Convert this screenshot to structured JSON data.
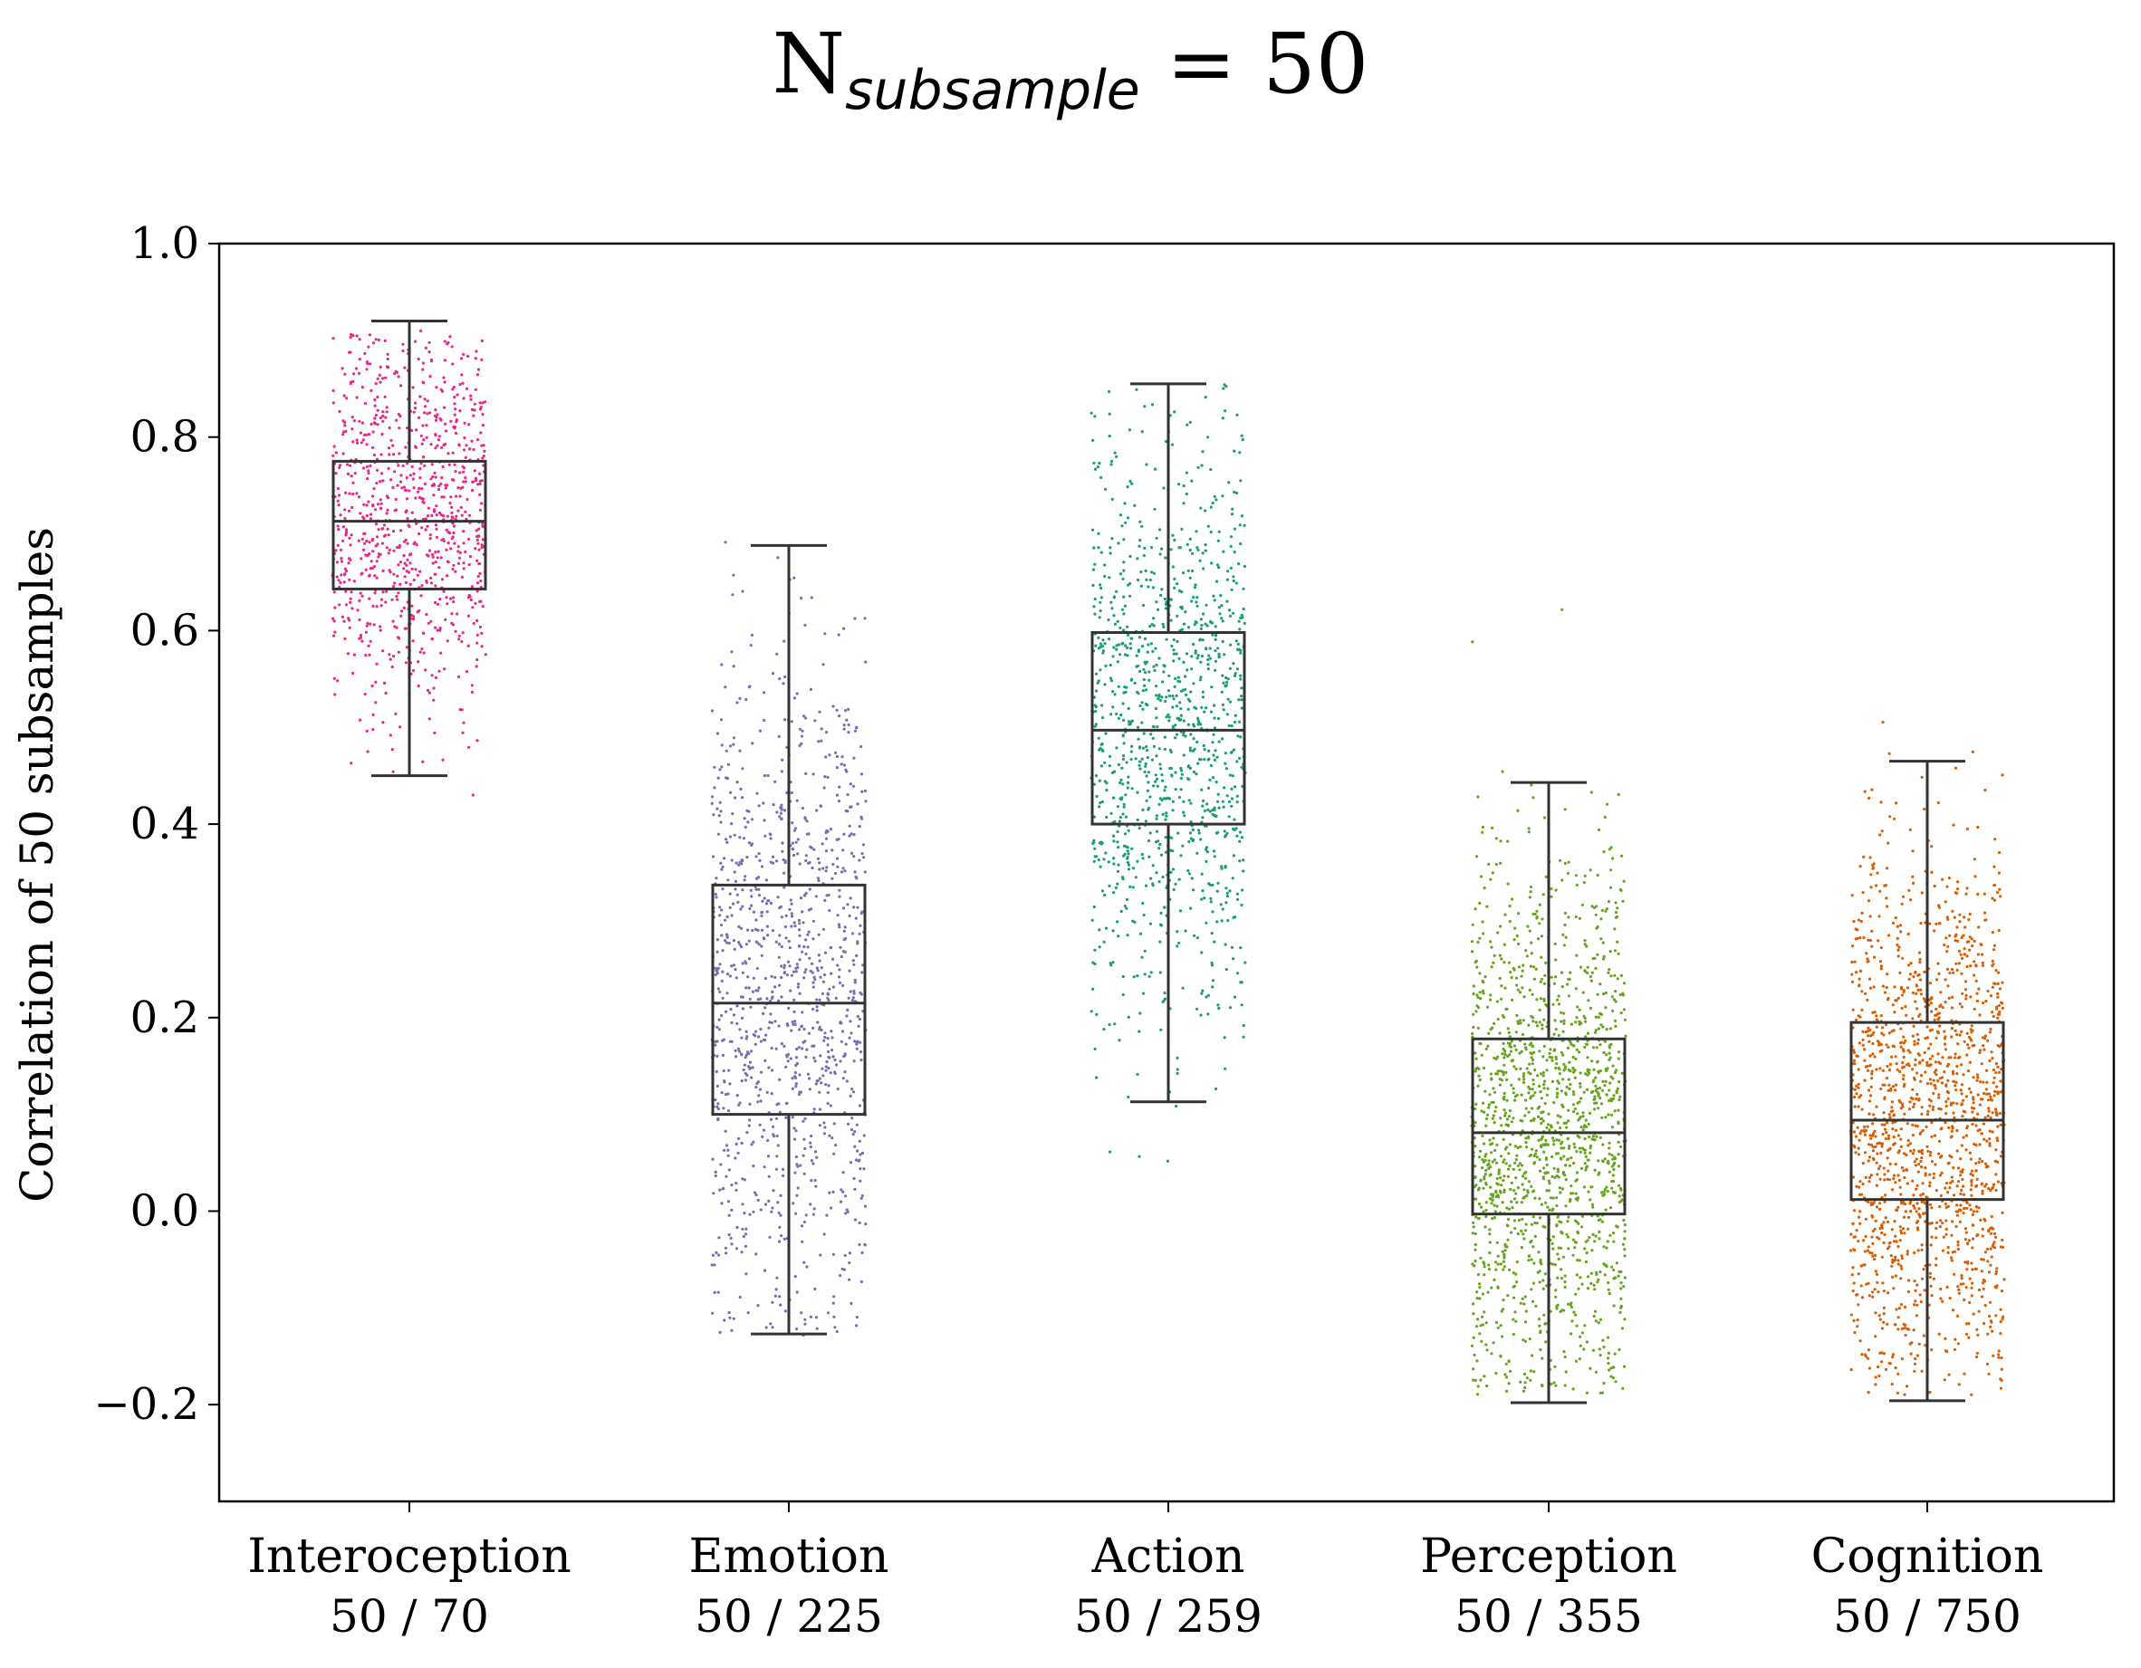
{
  "chart_data": {
    "type": "box",
    "title": "N",
    "title_subscript": "subsample",
    "title_suffix": " = 50",
    "ylabel": "Correlation of 50 subsamples",
    "xlabel": "",
    "ylim": [
      -0.3,
      1.0
    ],
    "yticks": [
      -0.2,
      0.0,
      0.2,
      0.4,
      0.6,
      0.8,
      1.0
    ],
    "ytick_labels": [
      "−0.2",
      "0.0",
      "0.2",
      "0.4",
      "0.6",
      "0.8",
      "1.0"
    ],
    "grid": false,
    "categories": [
      {
        "name": "Interoception",
        "count": "50 / 70",
        "color": "#e7298a",
        "whisker_low": 0.45,
        "q1": 0.643,
        "median": 0.713,
        "q3": 0.775,
        "whisker_high": 0.92,
        "points_min": 0.34,
        "points_max": 0.91,
        "n_points": 900
      },
      {
        "name": "Emotion",
        "count": "50 / 225",
        "color": "#7570b3",
        "whisker_low": -0.127,
        "q1": 0.1,
        "median": 0.215,
        "q3": 0.337,
        "whisker_high": 0.688,
        "points_min": -0.13,
        "points_max": 0.725,
        "n_points": 1100
      },
      {
        "name": "Action",
        "count": "50 / 259",
        "color": "#1b9e77",
        "whisker_low": 0.113,
        "q1": 0.4,
        "median": 0.497,
        "q3": 0.598,
        "whisker_high": 0.855,
        "points_min": 0.04,
        "points_max": 0.855,
        "n_points": 1100
      },
      {
        "name": "Perception",
        "count": "50 / 355",
        "color": "#66a61e",
        "whisker_low": -0.198,
        "q1": -0.003,
        "median": 0.081,
        "q3": 0.178,
        "whisker_high": 0.443,
        "points_min": -0.19,
        "points_max": 0.65,
        "n_points": 1500
      },
      {
        "name": "Cognition",
        "count": "50 / 750",
        "color": "#d95f02",
        "whisker_low": -0.196,
        "q1": 0.012,
        "median": 0.094,
        "q3": 0.195,
        "whisker_high": 0.465,
        "points_min": -0.19,
        "points_max": 0.64,
        "n_points": 1500
      }
    ]
  }
}
